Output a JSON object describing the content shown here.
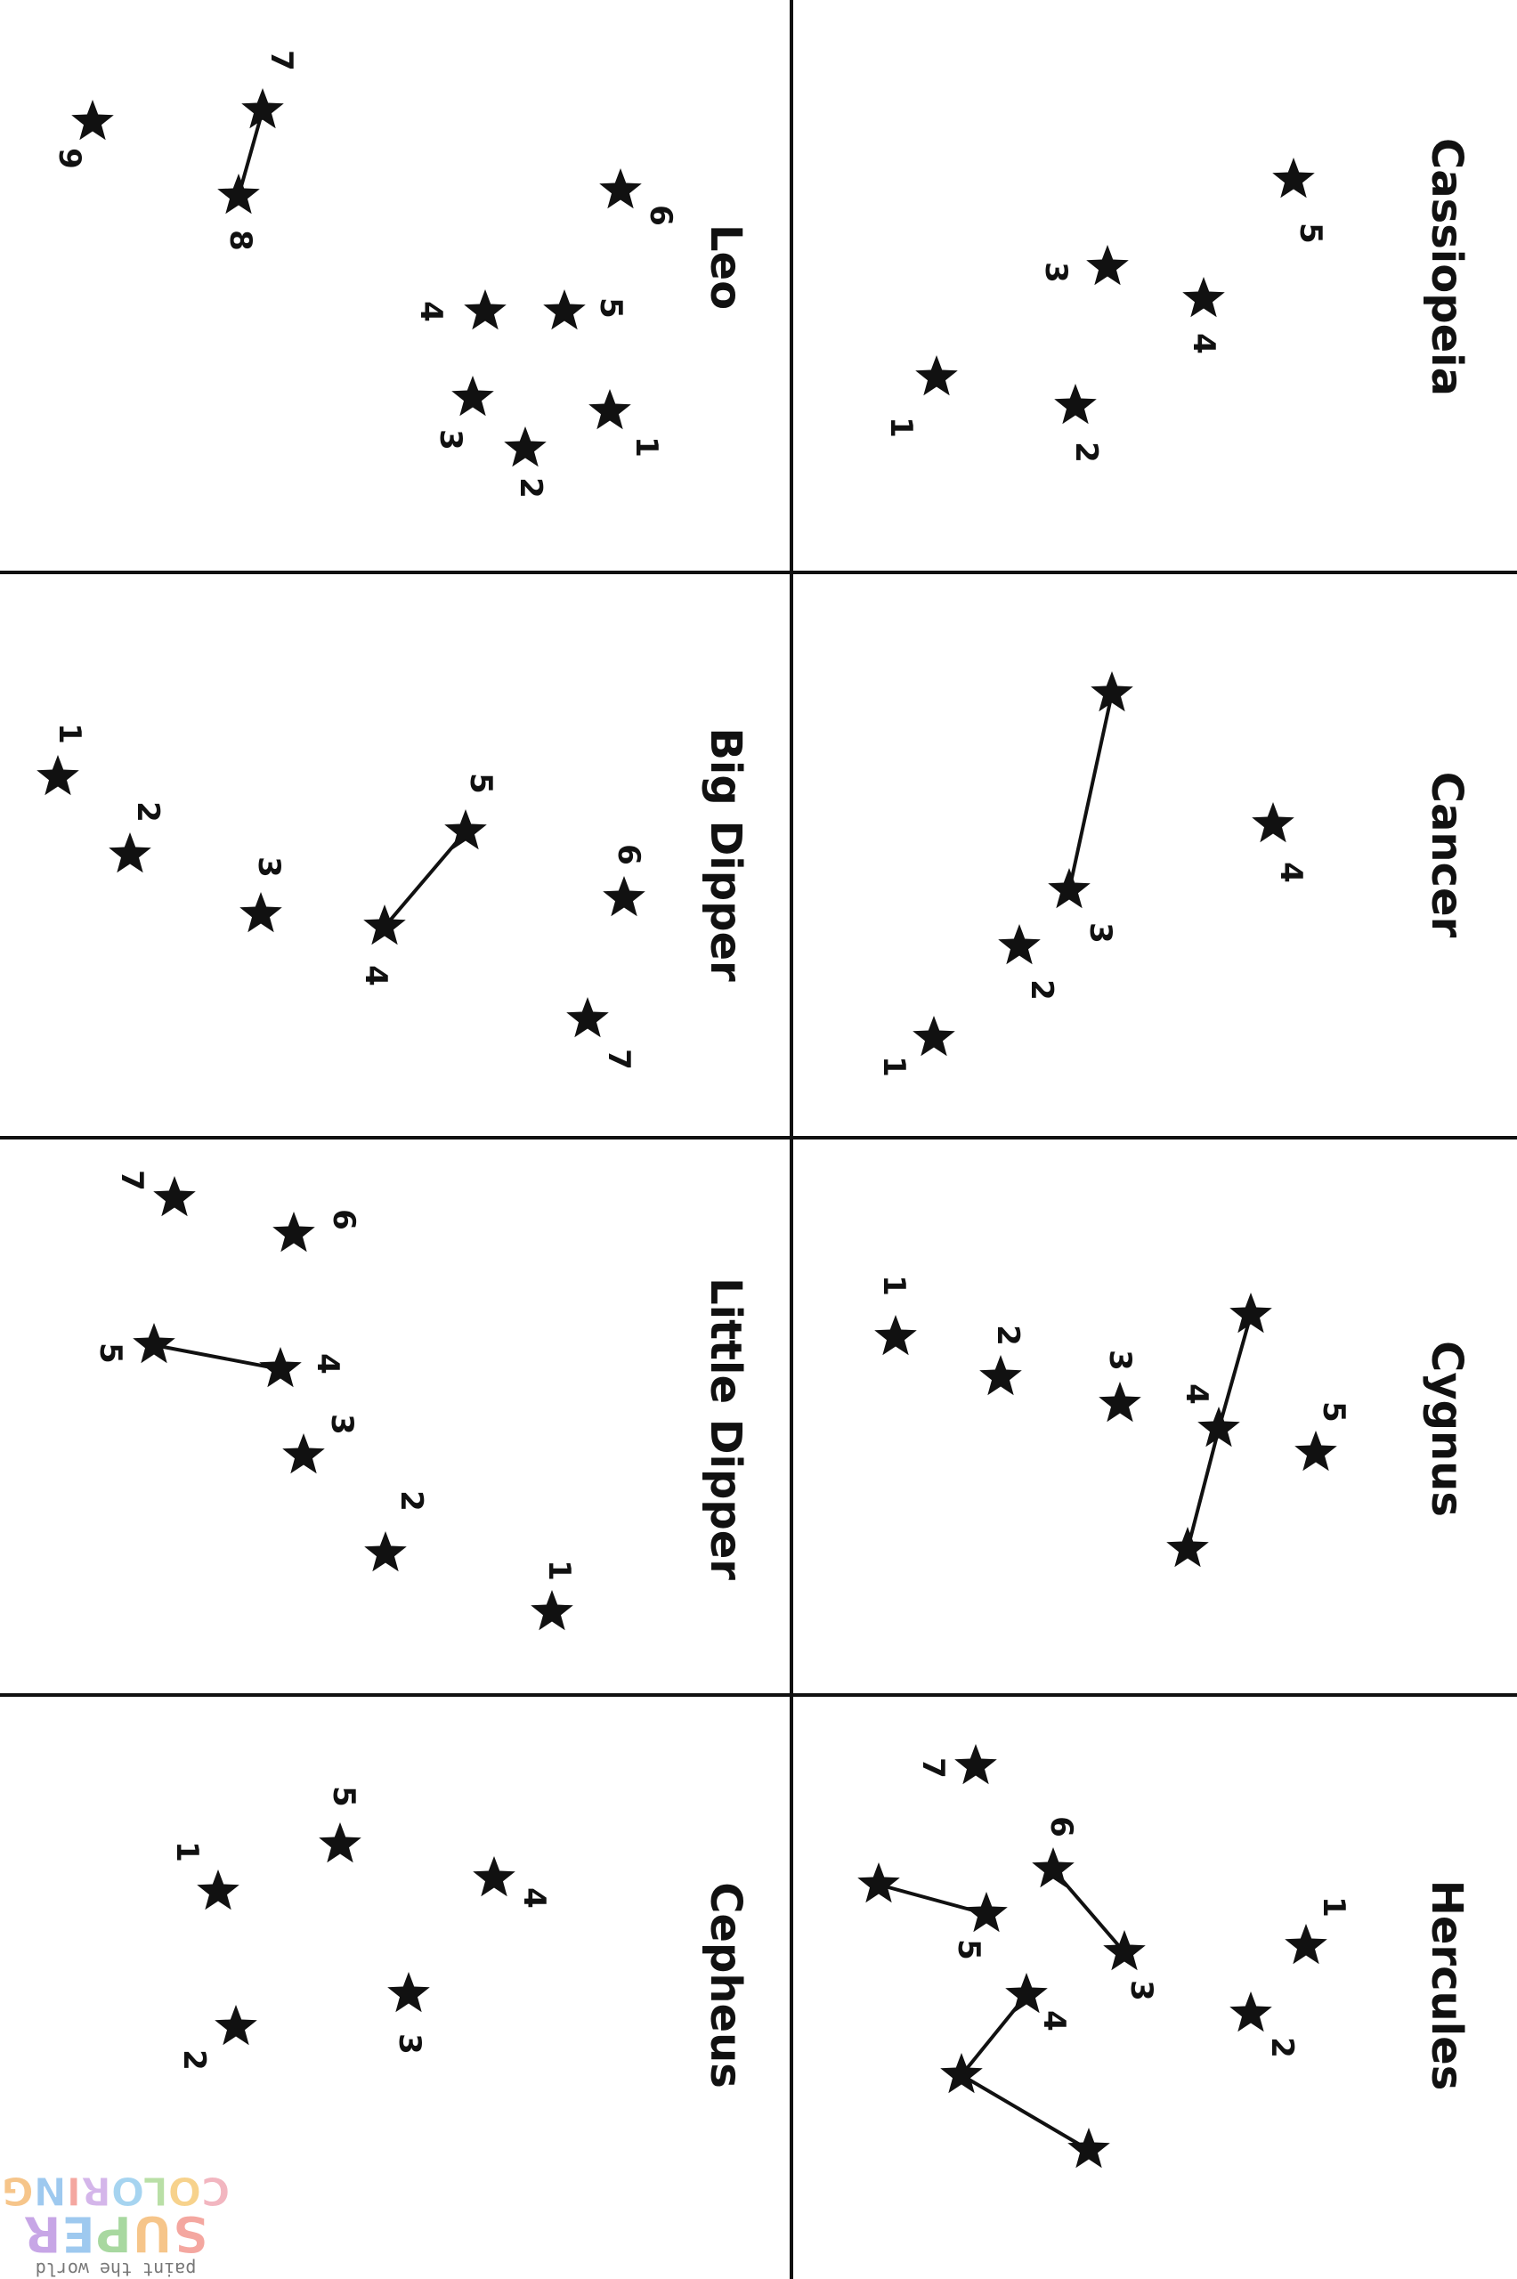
{
  "colors": {
    "ink": "#111111",
    "paper": "#ffffff"
  },
  "panels": [
    {
      "id": "cassiopeia",
      "title": "Cassiopeia",
      "stars": [
        {
          "label": "1"
        },
        {
          "label": "2"
        },
        {
          "label": "3"
        },
        {
          "label": "4"
        },
        {
          "label": "5"
        }
      ]
    },
    {
      "id": "leo",
      "title": "Leo",
      "stars": [
        {
          "label": "1"
        },
        {
          "label": "2"
        },
        {
          "label": "3"
        },
        {
          "label": "4"
        },
        {
          "label": "5"
        },
        {
          "label": "6"
        },
        {
          "label": "7"
        },
        {
          "label": "8"
        },
        {
          "label": "9"
        }
      ]
    },
    {
      "id": "cancer",
      "title": "Cancer",
      "stars": [
        {
          "label": "1"
        },
        {
          "label": "2"
        },
        {
          "label": "3"
        },
        {
          "label": "4"
        },
        {
          "label": ""
        }
      ]
    },
    {
      "id": "big-dipper",
      "title": "Big Dipper",
      "stars": [
        {
          "label": "1"
        },
        {
          "label": "2"
        },
        {
          "label": "3"
        },
        {
          "label": "4"
        },
        {
          "label": "5"
        },
        {
          "label": "6"
        },
        {
          "label": "7"
        }
      ]
    },
    {
      "id": "cygnus",
      "title": "Cygnus",
      "stars": [
        {
          "label": "1"
        },
        {
          "label": "2"
        },
        {
          "label": "3"
        },
        {
          "label": "4"
        },
        {
          "label": "5"
        },
        {
          "label": ""
        },
        {
          "label": ""
        }
      ]
    },
    {
      "id": "little-dipper",
      "title": "Little Dipper",
      "stars": [
        {
          "label": "1"
        },
        {
          "label": "2"
        },
        {
          "label": "3"
        },
        {
          "label": "4"
        },
        {
          "label": "5"
        },
        {
          "label": "6"
        },
        {
          "label": "7"
        }
      ]
    },
    {
      "id": "hercules",
      "title": "Hercules",
      "stars": [
        {
          "label": "1"
        },
        {
          "label": "2"
        },
        {
          "label": "3"
        },
        {
          "label": "4"
        },
        {
          "label": "5"
        },
        {
          "label": "6"
        },
        {
          "label": "7"
        },
        {
          "label": ""
        },
        {
          "label": ""
        },
        {
          "label": ""
        }
      ]
    },
    {
      "id": "cepheus",
      "title": "Cepheus",
      "stars": [
        {
          "label": "1"
        },
        {
          "label": "2"
        },
        {
          "label": "3"
        },
        {
          "label": "4"
        },
        {
          "label": "5"
        }
      ]
    }
  ],
  "watermark": {
    "tagline": "paint the world",
    "line1": "SUPER",
    "line2": "COLORING"
  }
}
